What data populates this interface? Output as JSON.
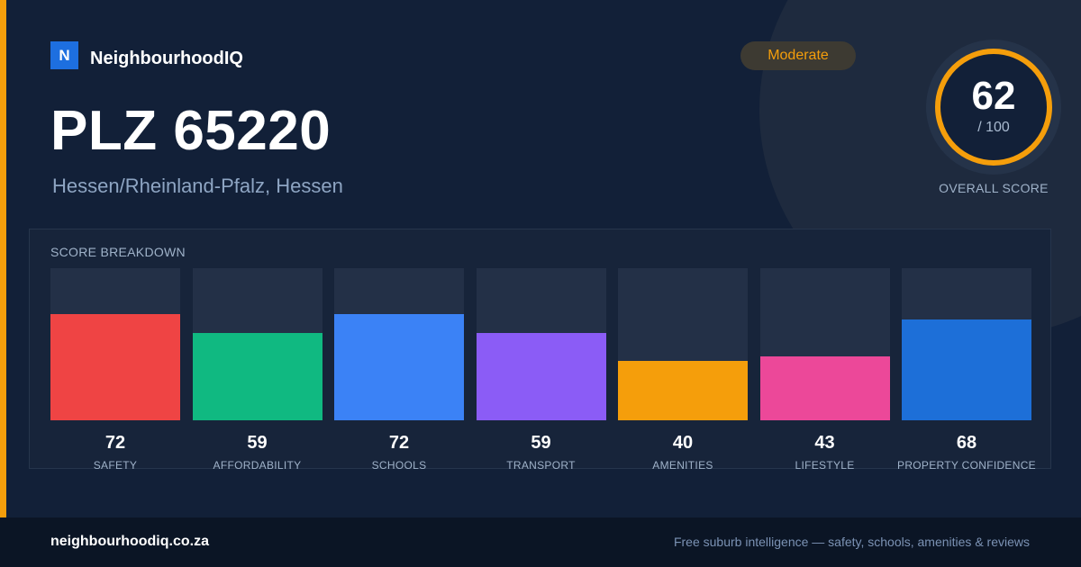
{
  "brand": {
    "logo_letter": "N",
    "name": "NeighbourhoodIQ"
  },
  "badge": {
    "label": "Moderate",
    "color": "#f59e0b"
  },
  "title": "PLZ 65220",
  "subtitle": "Hessen/Rheinland-Pfalz, Hessen",
  "overall": {
    "score": "62",
    "max_label": "/ 100",
    "label": "OVERALL SCORE",
    "value": 62,
    "max": 100,
    "ring_color": "#f59e0b"
  },
  "breakdown": {
    "title": "SCORE BREAKDOWN",
    "items": [
      {
        "label": "SAFETY",
        "value": 72,
        "color": "#ef4444"
      },
      {
        "label": "AFFORDABILITY",
        "value": 59,
        "color": "#10b981"
      },
      {
        "label": "SCHOOLS",
        "value": 72,
        "color": "#3b82f6"
      },
      {
        "label": "TRANSPORT",
        "value": 59,
        "color": "#8b5cf6"
      },
      {
        "label": "AMENITIES",
        "value": 40,
        "color": "#f59e0b"
      },
      {
        "label": "LIFESTYLE",
        "value": 43,
        "color": "#ec4899"
      },
      {
        "label": "PROPERTY CONFIDENCE",
        "value": 68,
        "color": "#1d6fd8"
      }
    ]
  },
  "footer": {
    "site": "neighbourhoodiq.co.za",
    "tagline": "Free suburb intelligence — safety, schools, amenities & reviews"
  }
}
